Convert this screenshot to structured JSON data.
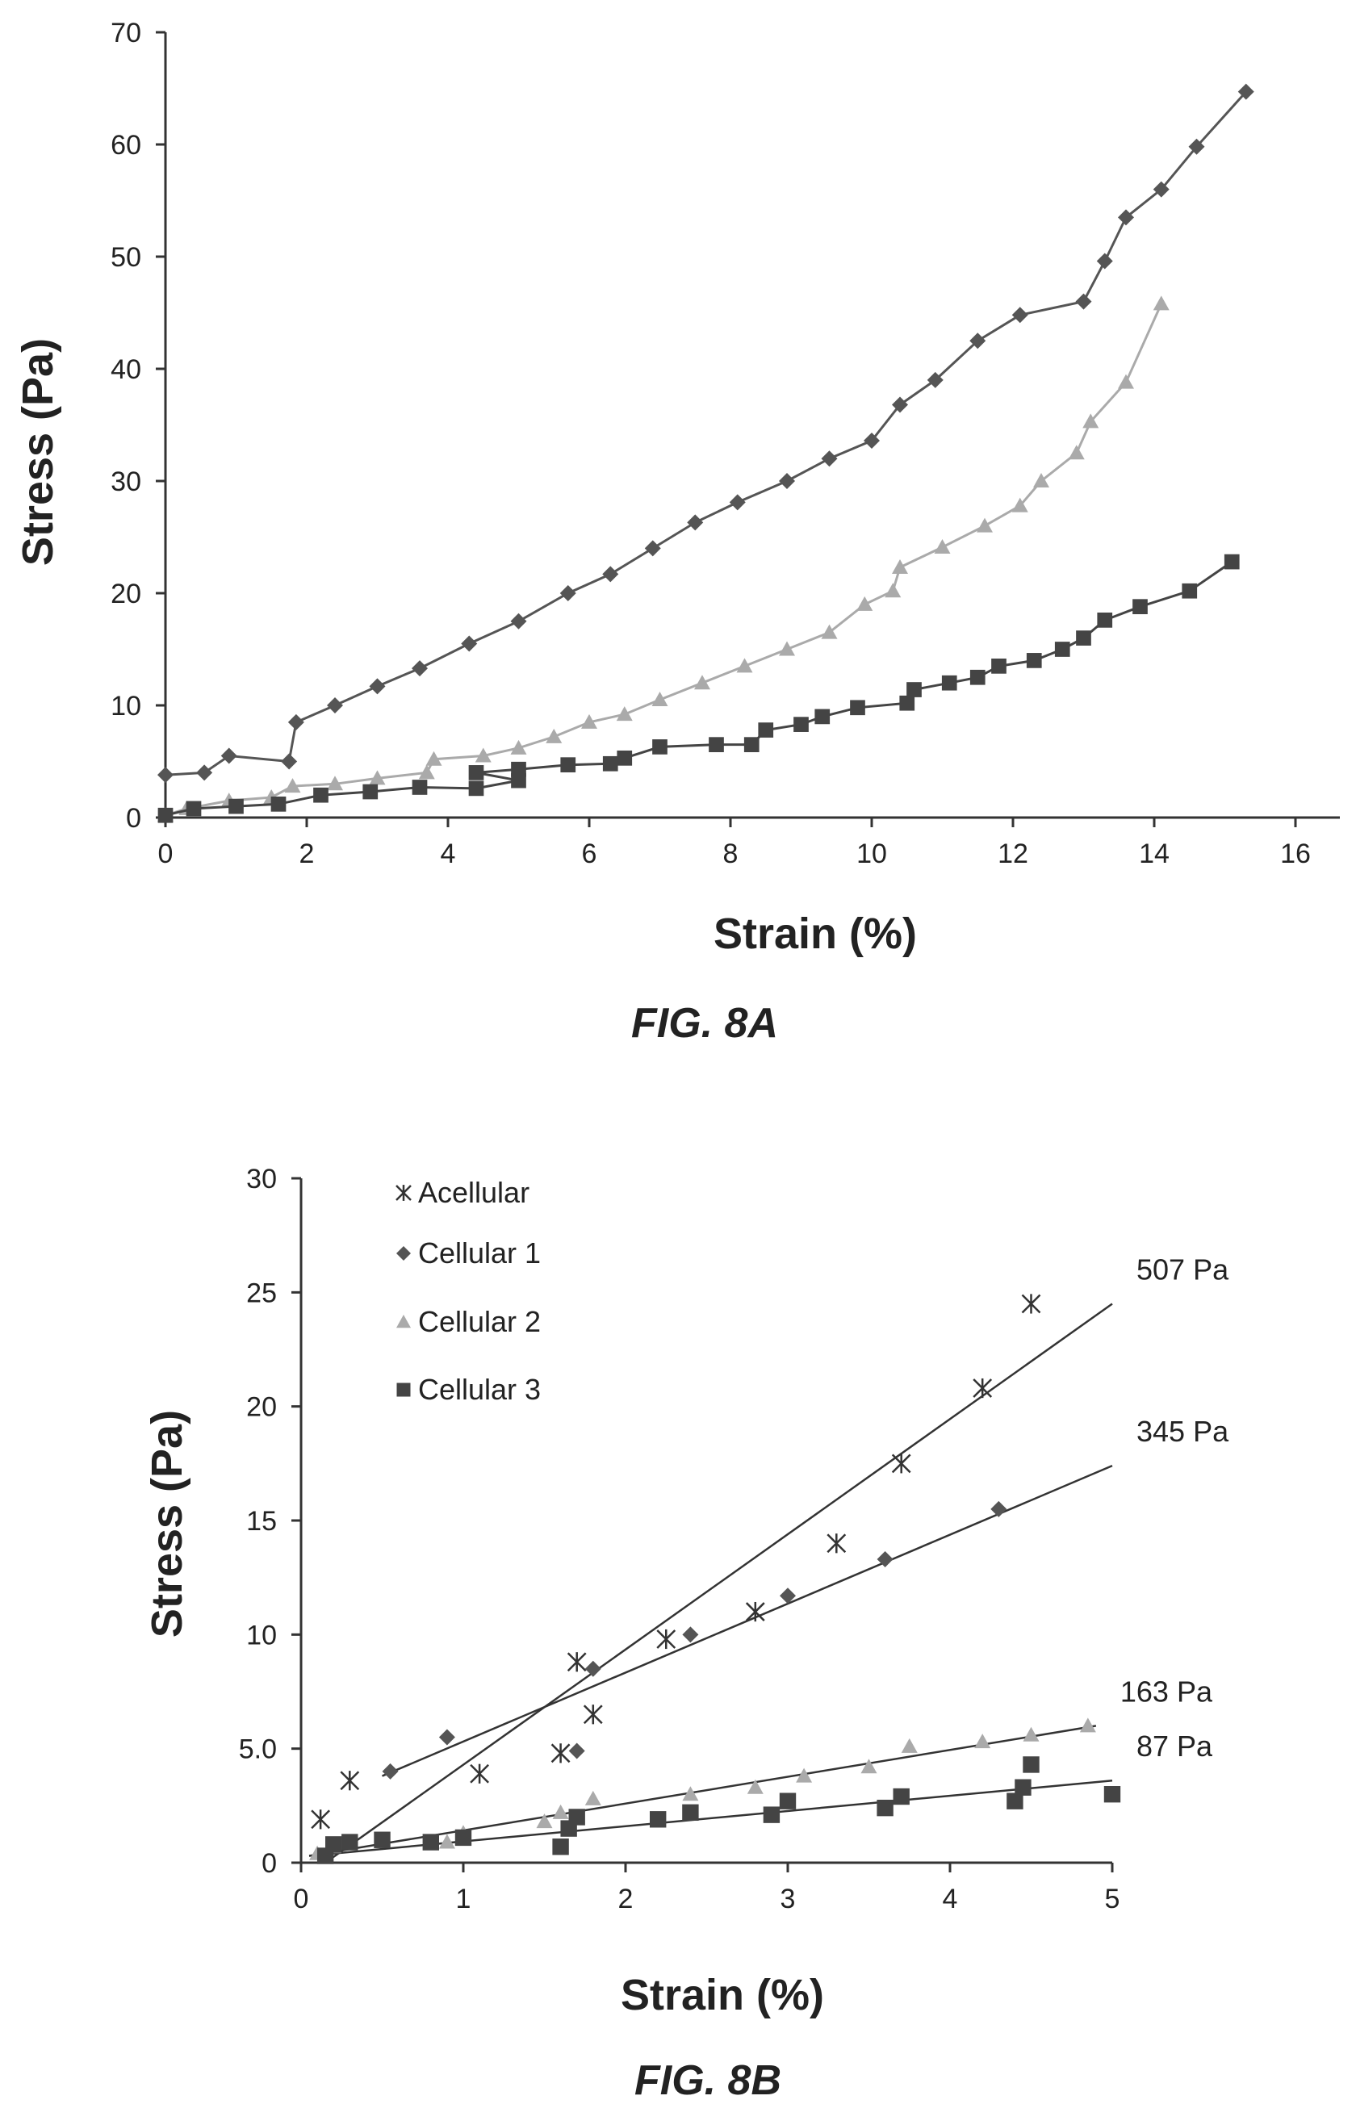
{
  "colors": {
    "axis": "#333333",
    "cellular1": "#555555",
    "cellular2": "#aaaaaa",
    "cellular3": "#444444",
    "acellular": "#333333",
    "fit": "#333333"
  },
  "chart_data": [
    {
      "type": "line",
      "caption": "FIG. 8A",
      "xlabel": "Strain (%)",
      "ylabel": "Stress (Pa)",
      "xlim": [
        0,
        16.5
      ],
      "ylim": [
        0,
        70
      ],
      "xticks": [
        0,
        2,
        4,
        6,
        8,
        10,
        12,
        14,
        16
      ],
      "yticks": [
        0,
        10,
        20,
        30,
        40,
        50,
        60,
        70
      ],
      "grid": false,
      "series": [
        {
          "marker": "diamond",
          "color": "#555555",
          "points": [
            [
              0,
              3.8
            ],
            [
              0.55,
              4.0
            ],
            [
              0.9,
              5.5
            ],
            [
              1.75,
              5.0
            ],
            [
              1.85,
              8.5
            ],
            [
              2.4,
              10.0
            ],
            [
              3.0,
              11.7
            ],
            [
              3.6,
              13.3
            ],
            [
              4.3,
              15.5
            ],
            [
              5.0,
              17.5
            ],
            [
              5.7,
              20.0
            ],
            [
              6.3,
              21.7
            ],
            [
              6.9,
              24.0
            ],
            [
              7.5,
              26.3
            ],
            [
              8.1,
              28.1
            ],
            [
              8.8,
              30.0
            ],
            [
              9.4,
              32.0
            ],
            [
              10.0,
              33.6
            ],
            [
              10.4,
              36.8
            ],
            [
              10.9,
              39.0
            ],
            [
              11.5,
              42.5
            ],
            [
              12.1,
              44.8
            ],
            [
              13.0,
              46.0
            ],
            [
              13.3,
              49.6
            ],
            [
              13.6,
              53.5
            ],
            [
              14.1,
              56.0
            ],
            [
              14.6,
              59.8
            ],
            [
              15.3,
              64.7
            ]
          ]
        },
        {
          "marker": "triangle",
          "color": "#aaaaaa",
          "points": [
            [
              0,
              0.2
            ],
            [
              0.3,
              0.8
            ],
            [
              0.9,
              1.5
            ],
            [
              1.5,
              1.8
            ],
            [
              1.8,
              2.8
            ],
            [
              2.4,
              3.0
            ],
            [
              3.0,
              3.5
            ],
            [
              3.7,
              4.0
            ],
            [
              3.8,
              5.2
            ],
            [
              4.5,
              5.5
            ],
            [
              5.0,
              6.2
            ],
            [
              5.5,
              7.2
            ],
            [
              6.0,
              8.5
            ],
            [
              6.5,
              9.2
            ],
            [
              7.0,
              10.5
            ],
            [
              7.6,
              12.0
            ],
            [
              8.2,
              13.5
            ],
            [
              8.8,
              15.0
            ],
            [
              9.4,
              16.5
            ],
            [
              9.9,
              19.0
            ],
            [
              10.3,
              20.2
            ],
            [
              10.4,
              22.3
            ],
            [
              11.0,
              24.1
            ],
            [
              11.6,
              26.0
            ],
            [
              12.1,
              27.8
            ],
            [
              12.4,
              30.0
            ],
            [
              12.9,
              32.5
            ],
            [
              13.1,
              35.3
            ],
            [
              13.6,
              38.8
            ],
            [
              14.1,
              45.8
            ]
          ]
        },
        {
          "marker": "square",
          "color": "#444444",
          "points": [
            [
              0,
              0.2
            ],
            [
              0.4,
              0.8
            ],
            [
              1.0,
              1.0
            ],
            [
              1.6,
              1.2
            ],
            [
              2.2,
              2.0
            ],
            [
              2.9,
              2.3
            ],
            [
              3.6,
              2.7
            ],
            [
              4.4,
              2.6
            ],
            [
              5.0,
              3.3
            ],
            [
              4.4,
              4.0
            ],
            [
              5.0,
              4.3
            ],
            [
              5.7,
              4.7
            ],
            [
              6.3,
              4.8
            ],
            [
              6.5,
              5.3
            ],
            [
              7.0,
              6.3
            ],
            [
              7.8,
              6.5
            ],
            [
              8.3,
              6.5
            ],
            [
              8.5,
              7.8
            ],
            [
              9.0,
              8.3
            ],
            [
              9.3,
              9.0
            ],
            [
              9.8,
              9.8
            ],
            [
              10.5,
              10.2
            ],
            [
              10.6,
              11.4
            ],
            [
              11.1,
              12.0
            ],
            [
              11.5,
              12.5
            ],
            [
              11.8,
              13.5
            ],
            [
              12.3,
              14.0
            ],
            [
              12.7,
              15.0
            ],
            [
              13.0,
              16.0
            ],
            [
              13.3,
              17.6
            ],
            [
              13.8,
              18.8
            ],
            [
              14.5,
              20.2
            ],
            [
              15.1,
              22.8
            ]
          ]
        }
      ]
    },
    {
      "type": "scatter",
      "caption": "FIG. 8B",
      "xlabel": "Strain (%)",
      "ylabel": "Stress (Pa)",
      "xlim": [
        0,
        5
      ],
      "ylim": [
        0,
        30
      ],
      "xticks": [
        0,
        1,
        2,
        3,
        4,
        5
      ],
      "ytick_labels": [
        "0",
        "5.0",
        "10",
        "15",
        "20",
        "25",
        "30"
      ],
      "grid": false,
      "legend_position": "top-left",
      "series": [
        {
          "name": "Acellular",
          "marker": "asterisk",
          "color": "#333333",
          "fit_label": "507 Pa",
          "fit": [
            [
              0.15,
              0
            ],
            [
              5.0,
              24.5
            ]
          ],
          "points": [
            [
              0.12,
              1.9
            ],
            [
              0.3,
              3.6
            ],
            [
              1.1,
              3.9
            ],
            [
              1.6,
              4.8
            ],
            [
              1.7,
              8.8
            ],
            [
              1.8,
              6.5
            ],
            [
              2.25,
              9.8
            ],
            [
              2.8,
              11.0
            ],
            [
              3.3,
              14.0
            ],
            [
              3.7,
              17.5
            ],
            [
              4.2,
              20.8
            ],
            [
              4.5,
              24.5
            ]
          ]
        },
        {
          "name": "Cellular 1",
          "marker": "diamond",
          "color": "#555555",
          "fit_label": "345 Pa",
          "fit": [
            [
              0.5,
              3.8
            ],
            [
              5.0,
              17.4
            ]
          ],
          "points": [
            [
              0.55,
              4.0
            ],
            [
              0.9,
              5.5
            ],
            [
              1.7,
              4.9
            ],
            [
              1.8,
              8.5
            ],
            [
              2.4,
              10.0
            ],
            [
              3.0,
              11.7
            ],
            [
              3.6,
              13.3
            ],
            [
              4.3,
              15.5
            ]
          ]
        },
        {
          "name": "Cellular 2",
          "marker": "triangle",
          "color": "#aaaaaa",
          "fit_label": "163 Pa",
          "fit": [
            [
              0.05,
              0.3
            ],
            [
              4.9,
              6.0
            ]
          ],
          "points": [
            [
              0.1,
              0.4
            ],
            [
              0.2,
              0.7
            ],
            [
              0.9,
              0.9
            ],
            [
              1.0,
              1.3
            ],
            [
              1.5,
              1.8
            ],
            [
              1.6,
              2.2
            ],
            [
              1.8,
              2.8
            ],
            [
              2.4,
              3.0
            ],
            [
              2.8,
              3.3
            ],
            [
              3.1,
              3.8
            ],
            [
              3.5,
              4.2
            ],
            [
              3.75,
              5.1
            ],
            [
              4.2,
              5.3
            ],
            [
              4.5,
              5.6
            ],
            [
              4.85,
              6.0
            ]
          ]
        },
        {
          "name": "Cellular 3",
          "marker": "square",
          "color": "#444444",
          "fit_label": "87 Pa",
          "fit": [
            [
              0.05,
              0.3
            ],
            [
              5.0,
              3.6
            ]
          ],
          "points": [
            [
              0.15,
              0.3
            ],
            [
              0.2,
              0.8
            ],
            [
              0.3,
              0.9
            ],
            [
              0.5,
              1.0
            ],
            [
              0.8,
              0.9
            ],
            [
              1.0,
              1.1
            ],
            [
              1.6,
              0.7
            ],
            [
              1.65,
              1.5
            ],
            [
              1.7,
              2.0
            ],
            [
              2.2,
              1.9
            ],
            [
              2.4,
              2.2
            ],
            [
              2.9,
              2.1
            ],
            [
              3.0,
              2.7
            ],
            [
              3.6,
              2.4
            ],
            [
              3.7,
              2.9
            ],
            [
              4.4,
              2.7
            ],
            [
              4.45,
              3.3
            ],
            [
              4.5,
              4.3
            ],
            [
              5.0,
              3.0
            ]
          ]
        }
      ]
    }
  ]
}
